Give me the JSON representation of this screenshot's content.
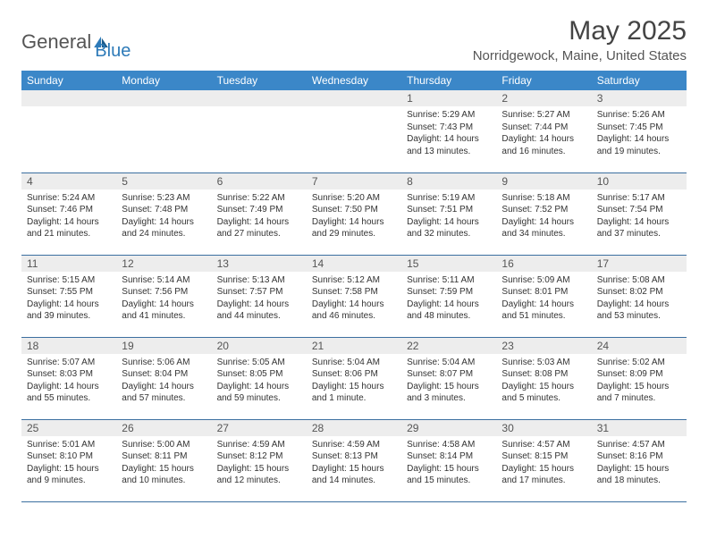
{
  "brand": {
    "a": "General",
    "b": "Blue"
  },
  "title": "May 2025",
  "location": "Norridgewock, Maine, United States",
  "colors": {
    "header_bg": "#3b87c8",
    "header_text": "#ffffff",
    "daynum_bg": "#ededed",
    "row_border": "#3b6fa0",
    "brand_blue": "#2d7ab8"
  },
  "weekdays": [
    "Sunday",
    "Monday",
    "Tuesday",
    "Wednesday",
    "Thursday",
    "Friday",
    "Saturday"
  ],
  "weeks": [
    [
      null,
      null,
      null,
      null,
      {
        "n": "1",
        "sr": "5:29 AM",
        "ss": "7:43 PM",
        "dl": "14 hours and 13 minutes."
      },
      {
        "n": "2",
        "sr": "5:27 AM",
        "ss": "7:44 PM",
        "dl": "14 hours and 16 minutes."
      },
      {
        "n": "3",
        "sr": "5:26 AM",
        "ss": "7:45 PM",
        "dl": "14 hours and 19 minutes."
      }
    ],
    [
      {
        "n": "4",
        "sr": "5:24 AM",
        "ss": "7:46 PM",
        "dl": "14 hours and 21 minutes."
      },
      {
        "n": "5",
        "sr": "5:23 AM",
        "ss": "7:48 PM",
        "dl": "14 hours and 24 minutes."
      },
      {
        "n": "6",
        "sr": "5:22 AM",
        "ss": "7:49 PM",
        "dl": "14 hours and 27 minutes."
      },
      {
        "n": "7",
        "sr": "5:20 AM",
        "ss": "7:50 PM",
        "dl": "14 hours and 29 minutes."
      },
      {
        "n": "8",
        "sr": "5:19 AM",
        "ss": "7:51 PM",
        "dl": "14 hours and 32 minutes."
      },
      {
        "n": "9",
        "sr": "5:18 AM",
        "ss": "7:52 PM",
        "dl": "14 hours and 34 minutes."
      },
      {
        "n": "10",
        "sr": "5:17 AM",
        "ss": "7:54 PM",
        "dl": "14 hours and 37 minutes."
      }
    ],
    [
      {
        "n": "11",
        "sr": "5:15 AM",
        "ss": "7:55 PM",
        "dl": "14 hours and 39 minutes."
      },
      {
        "n": "12",
        "sr": "5:14 AM",
        "ss": "7:56 PM",
        "dl": "14 hours and 41 minutes."
      },
      {
        "n": "13",
        "sr": "5:13 AM",
        "ss": "7:57 PM",
        "dl": "14 hours and 44 minutes."
      },
      {
        "n": "14",
        "sr": "5:12 AM",
        "ss": "7:58 PM",
        "dl": "14 hours and 46 minutes."
      },
      {
        "n": "15",
        "sr": "5:11 AM",
        "ss": "7:59 PM",
        "dl": "14 hours and 48 minutes."
      },
      {
        "n": "16",
        "sr": "5:09 AM",
        "ss": "8:01 PM",
        "dl": "14 hours and 51 minutes."
      },
      {
        "n": "17",
        "sr": "5:08 AM",
        "ss": "8:02 PM",
        "dl": "14 hours and 53 minutes."
      }
    ],
    [
      {
        "n": "18",
        "sr": "5:07 AM",
        "ss": "8:03 PM",
        "dl": "14 hours and 55 minutes."
      },
      {
        "n": "19",
        "sr": "5:06 AM",
        "ss": "8:04 PM",
        "dl": "14 hours and 57 minutes."
      },
      {
        "n": "20",
        "sr": "5:05 AM",
        "ss": "8:05 PM",
        "dl": "14 hours and 59 minutes."
      },
      {
        "n": "21",
        "sr": "5:04 AM",
        "ss": "8:06 PM",
        "dl": "15 hours and 1 minute."
      },
      {
        "n": "22",
        "sr": "5:04 AM",
        "ss": "8:07 PM",
        "dl": "15 hours and 3 minutes."
      },
      {
        "n": "23",
        "sr": "5:03 AM",
        "ss": "8:08 PM",
        "dl": "15 hours and 5 minutes."
      },
      {
        "n": "24",
        "sr": "5:02 AM",
        "ss": "8:09 PM",
        "dl": "15 hours and 7 minutes."
      }
    ],
    [
      {
        "n": "25",
        "sr": "5:01 AM",
        "ss": "8:10 PM",
        "dl": "15 hours and 9 minutes."
      },
      {
        "n": "26",
        "sr": "5:00 AM",
        "ss": "8:11 PM",
        "dl": "15 hours and 10 minutes."
      },
      {
        "n": "27",
        "sr": "4:59 AM",
        "ss": "8:12 PM",
        "dl": "15 hours and 12 minutes."
      },
      {
        "n": "28",
        "sr": "4:59 AM",
        "ss": "8:13 PM",
        "dl": "15 hours and 14 minutes."
      },
      {
        "n": "29",
        "sr": "4:58 AM",
        "ss": "8:14 PM",
        "dl": "15 hours and 15 minutes."
      },
      {
        "n": "30",
        "sr": "4:57 AM",
        "ss": "8:15 PM",
        "dl": "15 hours and 17 minutes."
      },
      {
        "n": "31",
        "sr": "4:57 AM",
        "ss": "8:16 PM",
        "dl": "15 hours and 18 minutes."
      }
    ]
  ],
  "labels": {
    "sunrise": "Sunrise: ",
    "sunset": "Sunset: ",
    "daylight": "Daylight: "
  }
}
